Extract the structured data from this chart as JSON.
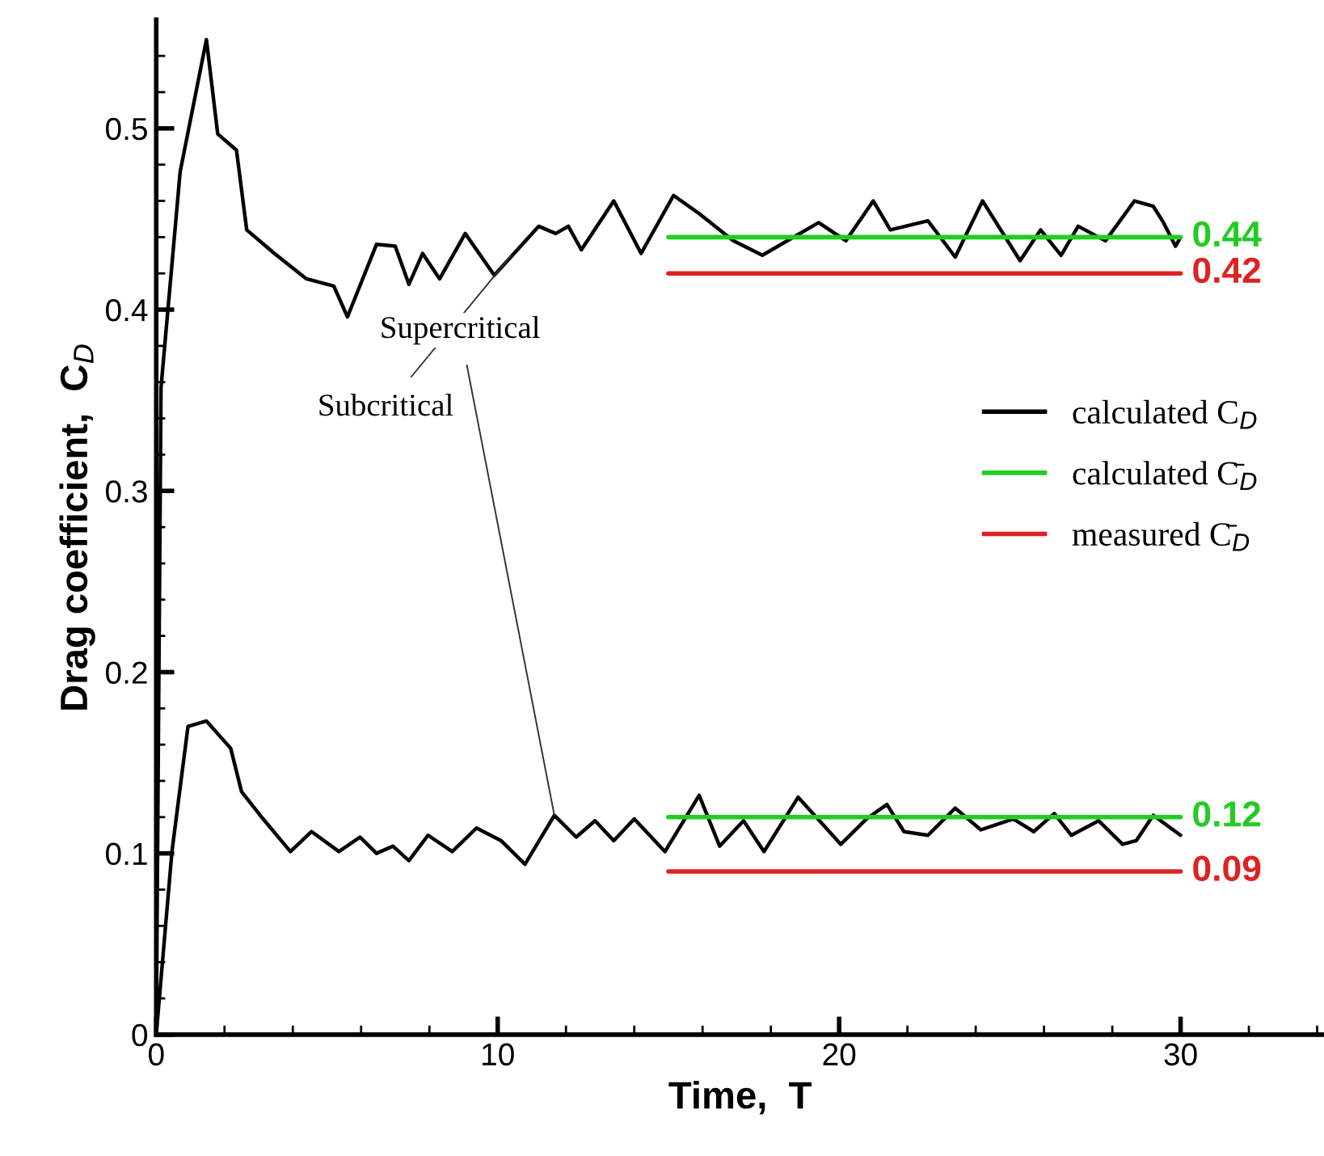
{
  "chart_data": {
    "type": "line",
    "xlabel": "Time,  T",
    "ylabel": "Drag coefficient,  C$_{D}$",
    "xlim": [
      0,
      34.2
    ],
    "ylim": [
      0,
      0.56
    ],
    "xticks": [
      0,
      {
        "value": 2,
        "label": null
      },
      {
        "value": 4,
        "label": null
      },
      {
        "value": 6,
        "label": null
      },
      {
        "value": 8,
        "label": null
      },
      10,
      {
        "value": 12,
        "label": null
      },
      {
        "value": 14,
        "label": null
      },
      {
        "value": 16,
        "label": null
      },
      {
        "value": 18,
        "label": null
      },
      20,
      {
        "value": 22,
        "label": null
      },
      {
        "value": 24,
        "label": null
      },
      {
        "value": 26,
        "label": null
      },
      {
        "value": 28,
        "label": null
      },
      30,
      {
        "value": 32,
        "label": null
      },
      {
        "value": 34,
        "label": null
      }
    ],
    "yticks": [
      0,
      {
        "value": 0.02,
        "label": null
      },
      {
        "value": 0.04,
        "label": null
      },
      {
        "value": 0.06,
        "label": null
      },
      {
        "value": 0.08,
        "label": null
      },
      0.1,
      {
        "value": 0.12,
        "label": null
      },
      {
        "value": 0.14,
        "label": null
      },
      {
        "value": 0.16,
        "label": null
      },
      {
        "value": 0.18,
        "label": null
      },
      0.2,
      {
        "value": 0.22,
        "label": null
      },
      {
        "value": 0.24,
        "label": null
      },
      {
        "value": 0.26,
        "label": null
      },
      {
        "value": 0.28,
        "label": null
      },
      0.3,
      {
        "value": 0.32,
        "label": null
      },
      {
        "value": 0.34,
        "label": null
      },
      {
        "value": 0.36,
        "label": null
      },
      {
        "value": 0.38,
        "label": null
      },
      0.4,
      {
        "value": 0.42,
        "label": null
      },
      {
        "value": 0.44,
        "label": null
      },
      {
        "value": 0.46,
        "label": null
      },
      {
        "value": 0.48,
        "label": null
      },
      0.5,
      {
        "value": 0.52,
        "label": null
      },
      {
        "value": 0.54,
        "label": null
      }
    ],
    "grid": false,
    "legend": "right",
    "series": [
      {
        "name": "calculated C$_{D}$",
        "color": "#000000",
        "x": [
          0,
          0.14,
          0.7,
          1.47,
          1.8,
          2.35,
          2.65,
          3.46,
          4.4,
          5.2,
          5.6,
          6.45,
          7.0,
          7.4,
          7.8,
          8.3,
          9.05,
          9.9,
          11.2,
          11.7,
          12.07,
          12.45,
          13.4,
          14.2,
          15.15,
          15.9,
          16.9,
          17.75,
          19.4,
          20.2,
          21.0,
          21.5,
          22.6,
          23.4,
          24.2,
          25.3,
          25.9,
          26.5,
          27.0,
          27.8,
          28.65,
          29.2,
          29.5,
          29.85,
          30.0
        ],
        "values": [
          0,
          0.357,
          0.476,
          0.549,
          0.497,
          0.488,
          0.444,
          0.431,
          0.417,
          0.413,
          0.396,
          0.436,
          0.435,
          0.414,
          0.431,
          0.417,
          0.442,
          0.419,
          0.446,
          0.442,
          0.446,
          0.433,
          0.46,
          0.431,
          0.463,
          0.453,
          0.438,
          0.43,
          0.448,
          0.438,
          0.46,
          0.444,
          0.449,
          0.429,
          0.46,
          0.427,
          0.444,
          0.43,
          0.446,
          0.438,
          0.46,
          0.457,
          0.448,
          0.435,
          0.44
        ]
      },
      {
        "color": "#000000",
        "x": [
          0,
          0.46,
          0.93,
          1.47,
          2.18,
          2.5,
          3.13,
          3.93,
          4.55,
          5.35,
          5.97,
          6.45,
          6.93,
          7.4,
          7.96,
          8.67,
          9.38,
          10.1,
          10.8,
          11.66,
          12.3,
          12.85,
          13.4,
          14.0,
          14.9,
          15.9,
          16.5,
          17.2,
          17.8,
          18.8,
          20.05,
          20.8,
          21.4,
          21.9,
          22.6,
          23.4,
          24.15,
          25.1,
          25.7,
          26.3,
          26.8,
          27.6,
          28.3,
          28.7,
          29.2,
          30.0
        ],
        "values": [
          0,
          0.101,
          0.17,
          0.173,
          0.158,
          0.134,
          0.119,
          0.101,
          0.112,
          0.101,
          0.109,
          0.1,
          0.104,
          0.096,
          0.11,
          0.101,
          0.114,
          0.107,
          0.094,
          0.121,
          0.109,
          0.118,
          0.107,
          0.119,
          0.101,
          0.132,
          0.104,
          0.118,
          0.101,
          0.131,
          0.105,
          0.119,
          0.127,
          0.112,
          0.11,
          0.125,
          0.113,
          0.119,
          0.112,
          0.122,
          0.11,
          0.118,
          0.105,
          0.107,
          0.121,
          0.11
        ]
      },
      {
        "name": "calculated C̄$_{D}$",
        "color": "#22cc22",
        "x": [
          15,
          30
        ],
        "values": [
          0.44,
          0.44
        ],
        "value_labels": [
          null,
          "0.44"
        ]
      },
      {
        "color": "#22cc22",
        "x": [
          15,
          30
        ],
        "values": [
          0.12,
          0.12
        ],
        "value_labels": [
          null,
          "0.12"
        ]
      },
      {
        "name": "measured C̄$_{D}$",
        "color": "#dd2222",
        "x": [
          15,
          30
        ],
        "values": [
          0.42,
          0.42
        ],
        "value_labels": [
          null,
          "0.42"
        ]
      },
      {
        "color": "#dd2222",
        "x": [
          15,
          30
        ],
        "values": [
          0.09,
          0.09
        ],
        "value_labels": [
          null,
          "0.09"
        ]
      }
    ],
    "annotations": [
      {
        "text": "Subcritical",
        "x": 10.4,
        "y": 0.43
      },
      {
        "text": "Supercritical",
        "x": 11.66,
        "y": 0.121
      }
    ]
  }
}
